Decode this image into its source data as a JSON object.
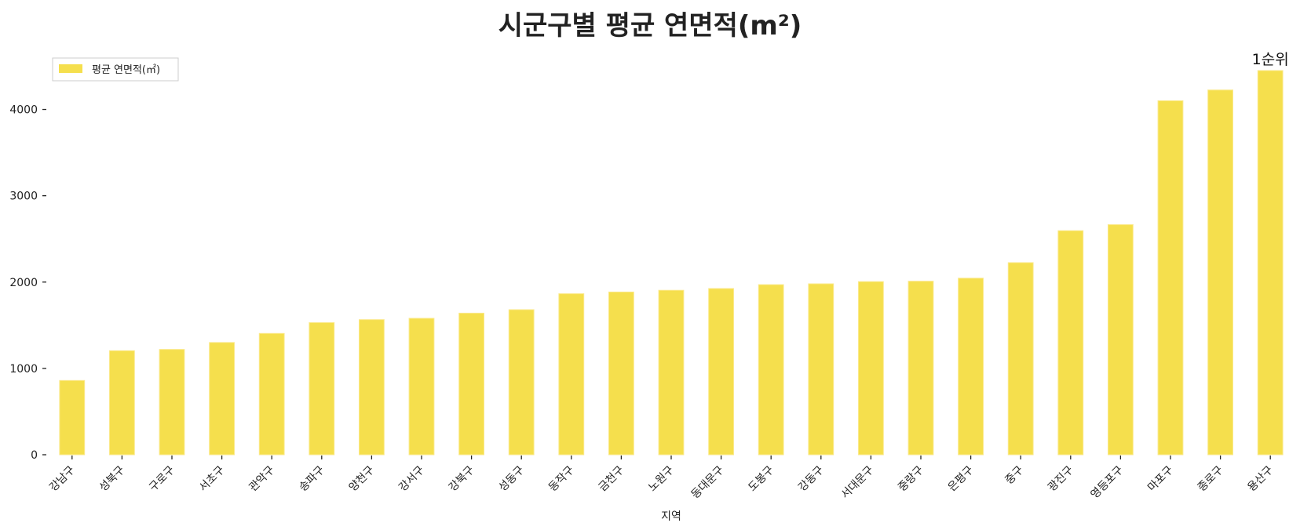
{
  "chart_data": {
    "type": "bar",
    "title": "시군구별 평균 연면적(m²)",
    "xlabel": "지역",
    "ylabel": "",
    "ylim": [
      0,
      4450
    ],
    "yticks": [
      0,
      1000,
      2000,
      3000,
      4000
    ],
    "grid": false,
    "legend_position": "top-left",
    "bar_color": "#f5df4d",
    "categories": [
      "강남구",
      "성북구",
      "구로구",
      "서초구",
      "관악구",
      "송파구",
      "양천구",
      "강서구",
      "강북구",
      "성동구",
      "동작구",
      "금천구",
      "노원구",
      "동대문구",
      "도봉구",
      "강동구",
      "서대문구",
      "중랑구",
      "은평구",
      "중구",
      "광진구",
      "영등포구",
      "마포구",
      "종로구",
      "용산구"
    ],
    "series": [
      {
        "name": "평균 연면적(㎡)",
        "values": [
          860,
          1205,
          1220,
          1300,
          1405,
          1530,
          1565,
          1580,
          1640,
          1680,
          1865,
          1885,
          1905,
          1925,
          1970,
          1980,
          2005,
          2010,
          2045,
          2225,
          2595,
          2665,
          4100,
          4225,
          4450
        ]
      }
    ],
    "annotations": [
      {
        "category": "용산구",
        "text": "1순위"
      }
    ]
  }
}
